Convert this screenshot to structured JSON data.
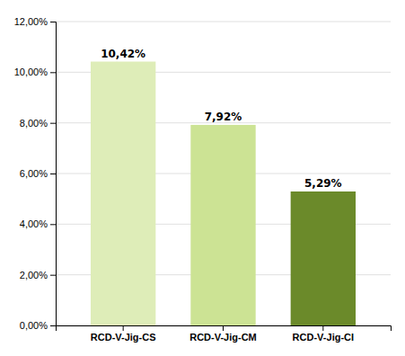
{
  "chart_data": {
    "type": "bar",
    "categories": [
      "RCD-V-Jig-CS",
      "RCD-V-Jig-CM",
      "RCD-V-Jig-CI"
    ],
    "values": [
      10.42,
      7.92,
      5.29
    ],
    "value_labels": [
      "10,42%",
      "7,92%",
      "5,29%"
    ],
    "colors": [
      "#deedb8",
      "#cce394",
      "#6b8a2a"
    ],
    "ylim": [
      0,
      12
    ],
    "yticks": [
      {
        "value": 0,
        "label": "0,00%"
      },
      {
        "value": 2,
        "label": "2,00%"
      },
      {
        "value": 4,
        "label": "4,00%"
      },
      {
        "value": 6,
        "label": "6,00%"
      },
      {
        "value": 8,
        "label": "8,00%"
      },
      {
        "value": 10,
        "label": "10,00%"
      },
      {
        "value": 12,
        "label": "12,00%"
      }
    ],
    "grid": true,
    "data_labels": true
  }
}
